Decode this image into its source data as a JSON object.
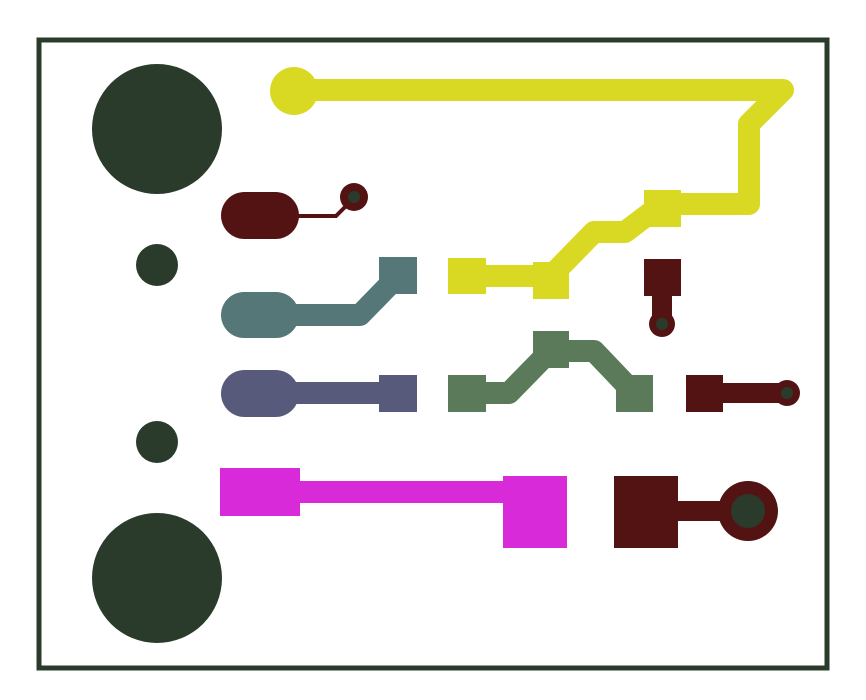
{
  "board": {
    "title": "",
    "colors": {
      "background": "#ffffff",
      "outline": "#2a3b2c",
      "mounting_hole": "#2a3b2c",
      "drill": "#2a3b2c",
      "net_vcc": "#d9d923",
      "net_gnd_teal": "#567777",
      "net_signal_slate": "#575a7a",
      "net_signal_green": "#5a7a5a",
      "net_power_magenta": "#d92ad9",
      "net_dark_red": "#541313"
    }
  }
}
